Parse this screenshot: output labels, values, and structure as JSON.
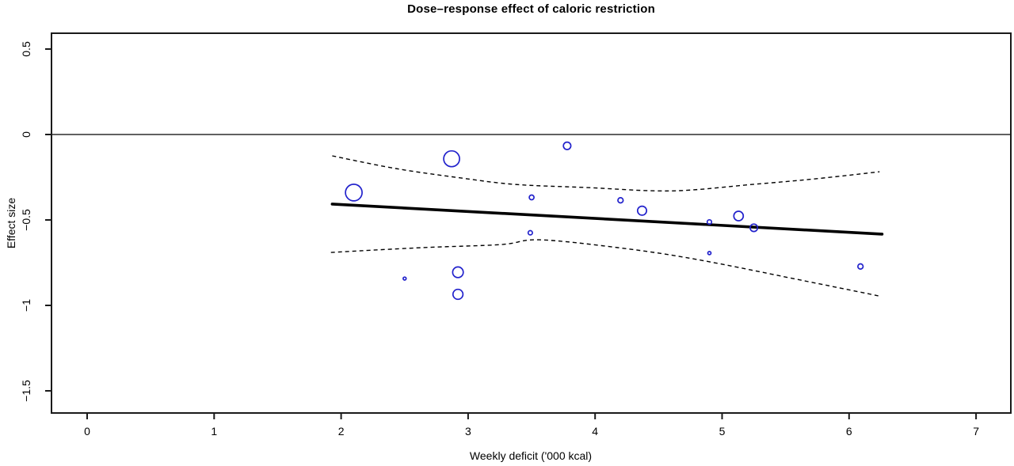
{
  "chart_data": {
    "type": "scatter",
    "subtype": "bubble-plot-with-meta-regression",
    "title": "Dose–response effect of caloric restriction",
    "xlabel": "Weekly deficit ('000 kcal)",
    "ylabel": "Effect size",
    "xlim": [
      -0.28,
      7.28
    ],
    "ylim": [
      -1.63,
      0.59
    ],
    "x_ticks": [
      0,
      1,
      2,
      3,
      4,
      5,
      6,
      7
    ],
    "x_tick_labels": [
      "0",
      "1",
      "2",
      "3",
      "4",
      "5",
      "6",
      "7"
    ],
    "y_ticks": [
      0.5,
      0,
      -0.5,
      -1,
      -1.5
    ],
    "y_tick_labels": [
      "0.5",
      "0",
      "−0.5",
      "−1",
      "−1.5"
    ],
    "grid": false,
    "legend": null,
    "reference_line": {
      "y": 0
    },
    "bubbles": [
      {
        "x": 2.1,
        "y": -0.34,
        "r": 10.5
      },
      {
        "x": 2.87,
        "y": -0.142,
        "r": 10.0
      },
      {
        "x": 3.78,
        "y": -0.066,
        "r": 4.7
      },
      {
        "x": 3.5,
        "y": -0.368,
        "r": 3.0
      },
      {
        "x": 4.2,
        "y": -0.385,
        "r": 3.3
      },
      {
        "x": 4.37,
        "y": -0.446,
        "r": 5.7
      },
      {
        "x": 4.9,
        "y": -0.512,
        "r": 2.8
      },
      {
        "x": 5.13,
        "y": -0.477,
        "r": 6.0
      },
      {
        "x": 5.25,
        "y": -0.546,
        "r": 4.7
      },
      {
        "x": 3.49,
        "y": -0.575,
        "r": 2.7
      },
      {
        "x": 4.9,
        "y": -0.694,
        "r": 2.0
      },
      {
        "x": 6.09,
        "y": -0.772,
        "r": 3.3
      },
      {
        "x": 2.5,
        "y": -0.843,
        "r": 1.9
      },
      {
        "x": 2.92,
        "y": -0.806,
        "r": 6.7
      },
      {
        "x": 2.92,
        "y": -0.935,
        "r": 6.3
      }
    ],
    "regression_line": {
      "x1": 1.93,
      "y1": -0.407,
      "x2": 6.26,
      "y2": -0.583
    },
    "ci_upper": [
      [
        1.93,
        -0.125
      ],
      [
        2.43,
        -0.199
      ],
      [
        2.95,
        -0.255
      ],
      [
        3.37,
        -0.292
      ],
      [
        3.93,
        -0.31
      ],
      [
        4.6,
        -0.33
      ],
      [
        5.24,
        -0.292
      ],
      [
        5.74,
        -0.259
      ],
      [
        6.24,
        -0.218
      ]
    ],
    "ci_lower": [
      [
        1.92,
        -0.69
      ],
      [
        2.64,
        -0.662
      ],
      [
        3.26,
        -0.644
      ],
      [
        3.56,
        -0.616
      ],
      [
        4.18,
        -0.662
      ],
      [
        4.8,
        -0.731
      ],
      [
        5.68,
        -0.861
      ],
      [
        6.23,
        -0.944
      ]
    ],
    "colors": {
      "bubble_stroke": "#2222cc",
      "regression": "#000000",
      "ci": "#000000",
      "zero_line": "#606060",
      "box": "#1a1a1a",
      "text": "#000000",
      "background": "#ffffff"
    }
  }
}
